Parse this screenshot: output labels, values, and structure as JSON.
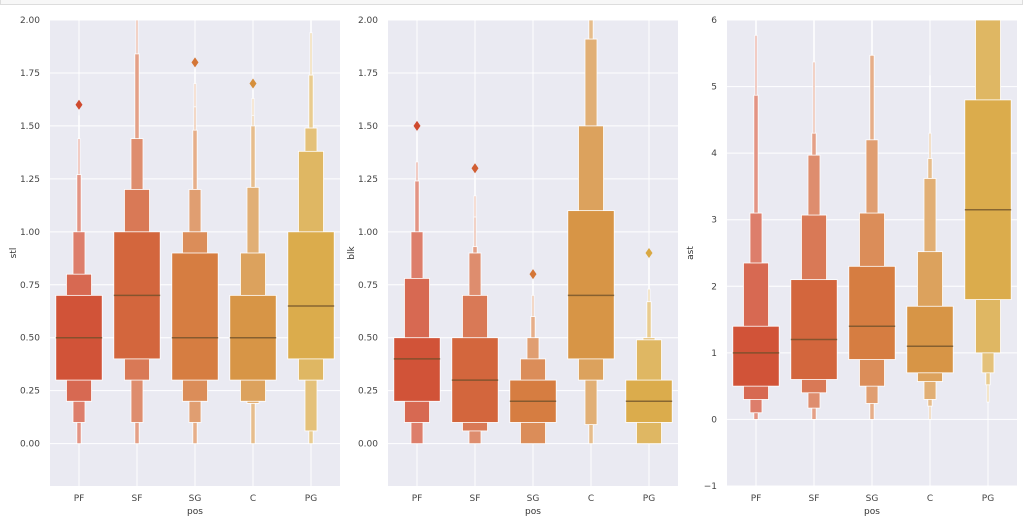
{
  "chart_data": [
    {
      "type": "boxen",
      "title": "",
      "xlabel": "pos",
      "ylabel": "stl",
      "categories": [
        "PF",
        "SF",
        "SG",
        "C",
        "PG"
      ],
      "ylim": [
        -0.2,
        2.0
      ],
      "yticks": [
        0.0,
        0.25,
        0.5,
        0.75,
        1.0,
        1.25,
        1.5,
        1.75,
        2.0
      ],
      "ytick_labels": [
        "0.00",
        "0.25",
        "0.50",
        "0.75",
        "1.00",
        "1.25",
        "1.50",
        "1.75",
        "2.00"
      ],
      "grid": true,
      "series": [
        {
          "name": "PF",
          "median": 0.5,
          "levels": [
            [
              0.3,
              0.7
            ],
            [
              0.2,
              0.8
            ],
            [
              0.1,
              1.0
            ],
            [
              0.0,
              1.27
            ],
            [
              0.0,
              1.44
            ]
          ],
          "whisker_top": 1.55,
          "outliers": [
            1.6
          ]
        },
        {
          "name": "SF",
          "median": 0.7,
          "levels": [
            [
              0.4,
              1.0
            ],
            [
              0.3,
              1.2
            ],
            [
              0.1,
              1.44
            ],
            [
              0.0,
              1.84
            ],
            [
              0.0,
              2.0
            ]
          ],
          "whisker_top": 2.0,
          "outliers": []
        },
        {
          "name": "SG",
          "median": 0.5,
          "levels": [
            [
              0.3,
              0.9
            ],
            [
              0.2,
              1.0
            ],
            [
              0.1,
              1.2
            ],
            [
              0.0,
              1.48
            ],
            [
              0.0,
              1.59
            ],
            [
              0.0,
              1.7
            ]
          ],
          "whisker_top": 1.77,
          "outliers": [
            1.8
          ]
        },
        {
          "name": "C",
          "median": 0.5,
          "levels": [
            [
              0.3,
              0.7
            ],
            [
              0.2,
              0.9
            ],
            [
              0.19,
              1.21
            ],
            [
              0.0,
              1.5
            ],
            [
              0.0,
              1.55
            ],
            [
              0.0,
              1.63
            ]
          ],
          "whisker_top": 1.67,
          "outliers": [
            1.7
          ]
        },
        {
          "name": "PG",
          "median": 0.65,
          "levels": [
            [
              0.4,
              1.0
            ],
            [
              0.3,
              1.38
            ],
            [
              0.06,
              1.49
            ],
            [
              0.0,
              1.74
            ],
            [
              0.0,
              1.94
            ]
          ],
          "whisker_top": 2.0,
          "outliers": []
        }
      ]
    },
    {
      "type": "boxen",
      "title": "",
      "xlabel": "pos",
      "ylabel": "blk",
      "categories": [
        "PF",
        "SF",
        "SG",
        "C",
        "PG"
      ],
      "ylim": [
        -0.2,
        2.0
      ],
      "yticks": [
        0.0,
        0.25,
        0.5,
        0.75,
        1.0,
        1.25,
        1.5,
        1.75,
        2.0
      ],
      "ytick_labels": [
        "0.00",
        "0.25",
        "0.50",
        "0.75",
        "1.00",
        "1.25",
        "1.50",
        "1.75",
        "2.00"
      ],
      "grid": true,
      "series": [
        {
          "name": "PF",
          "median": 0.4,
          "levels": [
            [
              0.2,
              0.5
            ],
            [
              0.1,
              0.78
            ],
            [
              0.0,
              1.0
            ],
            [
              0.0,
              1.24
            ],
            [
              0.0,
              1.33
            ]
          ],
          "whisker_top": 1.47,
          "outliers": [
            1.5
          ]
        },
        {
          "name": "SF",
          "median": 0.3,
          "levels": [
            [
              0.1,
              0.5
            ],
            [
              0.06,
              0.7
            ],
            [
              0.0,
              0.9
            ],
            [
              0.0,
              0.93
            ],
            [
              0.0,
              1.07
            ],
            [
              0.0,
              1.17
            ]
          ],
          "whisker_top": 1.27,
          "outliers": [
            1.3
          ]
        },
        {
          "name": "SG",
          "median": 0.2,
          "levels": [
            [
              0.1,
              0.3
            ],
            [
              0.0,
              0.4
            ],
            [
              0.0,
              0.5
            ],
            [
              0.0,
              0.6
            ],
            [
              0.0,
              0.7
            ]
          ],
          "whisker_top": 0.77,
          "outliers": [
            0.8
          ]
        },
        {
          "name": "C",
          "median": 0.7,
          "levels": [
            [
              0.4,
              1.1
            ],
            [
              0.3,
              1.5
            ],
            [
              0.09,
              1.91
            ],
            [
              0.0,
              2.0
            ]
          ],
          "whisker_top": 2.0,
          "outliers": []
        },
        {
          "name": "PG",
          "median": 0.2,
          "levels": [
            [
              0.1,
              0.3
            ],
            [
              0.0,
              0.49
            ],
            [
              0.0,
              0.5
            ],
            [
              0.0,
              0.67
            ],
            [
              0.0,
              0.73
            ]
          ],
          "whisker_top": 0.87,
          "outliers": [
            0.9
          ]
        }
      ]
    },
    {
      "type": "boxen",
      "title": "",
      "xlabel": "pos",
      "ylabel": "ast",
      "categories": [
        "PF",
        "SF",
        "SG",
        "C",
        "PG"
      ],
      "ylim": [
        -1,
        6
      ],
      "yticks": [
        -1,
        0,
        1,
        2,
        3,
        4,
        5,
        6
      ],
      "ytick_labels": [
        "−1",
        "0",
        "1",
        "2",
        "3",
        "4",
        "5",
        "6"
      ],
      "grid": true,
      "series": [
        {
          "name": "PF",
          "median": 1.0,
          "levels": [
            [
              0.5,
              1.4
            ],
            [
              0.3,
              2.35
            ],
            [
              0.1,
              3.1
            ],
            [
              0.0,
              4.87
            ],
            [
              0.0,
              5.77
            ]
          ],
          "whisker_top": 6.0,
          "outliers": []
        },
        {
          "name": "SF",
          "median": 1.2,
          "levels": [
            [
              0.6,
              2.1
            ],
            [
              0.4,
              3.07
            ],
            [
              0.17,
              3.97
            ],
            [
              0.0,
              4.3
            ],
            [
              0.0,
              5.37
            ]
          ],
          "whisker_top": 6.0,
          "outliers": []
        },
        {
          "name": "SG",
          "median": 1.4,
          "levels": [
            [
              0.9,
              2.3
            ],
            [
              0.5,
              3.1
            ],
            [
              0.24,
              4.2
            ],
            [
              0.0,
              5.47
            ]
          ],
          "whisker_top": 6.0,
          "outliers": []
        },
        {
          "name": "C",
          "median": 1.1,
          "levels": [
            [
              0.7,
              1.7
            ],
            [
              0.57,
              2.52
            ],
            [
              0.3,
              3.62
            ],
            [
              0.2,
              3.92
            ],
            [
              0.0,
              4.3
            ]
          ],
          "whisker_top": 5.17,
          "outliers": []
        },
        {
          "name": "PG",
          "median": 3.15,
          "levels": [
            [
              1.8,
              4.8
            ],
            [
              1.0,
              6.0
            ],
            [
              0.7,
              6.0
            ],
            [
              0.52,
              6.0
            ],
            [
              0.26,
              6.0
            ]
          ],
          "whisker_top": 6.0,
          "outliers": []
        }
      ]
    }
  ],
  "colors": {
    "panel_bg": "#eaeaf2",
    "grid": "#ffffff",
    "median": "#6b4f2a",
    "palettes": {
      "PF": "#cf4a2e",
      "SF": "#d15e33",
      "SG": "#d47637",
      "C": "#d58f3c",
      "PG": "#d9a843"
    }
  }
}
